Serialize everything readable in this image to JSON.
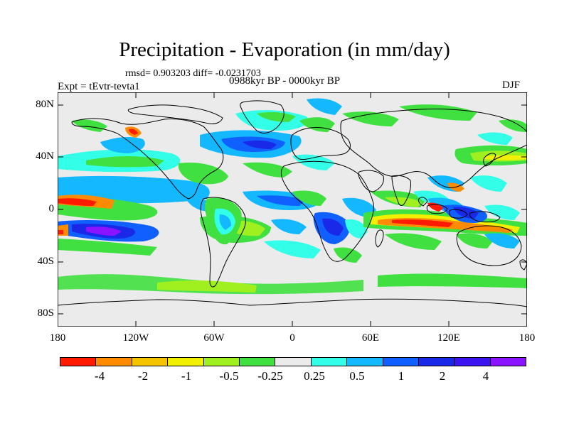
{
  "title": "Precipitation - Evaporation (in mm/day)",
  "stats": "rmsd= 0.903203  diff= -0.0231703",
  "experiment": "Expt = tEvtr-tevta1",
  "period": "0988kyr BP - 0000kyr BP",
  "season": "DJF",
  "latitude_labels": [
    "80N",
    "40N",
    "0",
    "40S",
    "80S"
  ],
  "longitude_labels": [
    "180",
    "120W",
    "60W",
    "0",
    "60E",
    "120E",
    "180"
  ],
  "colorbar": {
    "colors": [
      "#ff1a00",
      "#ff8c00",
      "#f5c400",
      "#f0f000",
      "#a0f020",
      "#40e040",
      "#ebebeb",
      "#33ffe8",
      "#14b8ff",
      "#1060ff",
      "#1a28e8",
      "#3c14f0",
      "#8a14ff"
    ],
    "labels": [
      "-4",
      "-2",
      "-1",
      "-0.5",
      "-0.25",
      "0.25",
      "0.5",
      "1",
      "2",
      "4"
    ]
  },
  "map_colors": {
    "ocean": "#ebebeb",
    "coast": "#000000"
  }
}
